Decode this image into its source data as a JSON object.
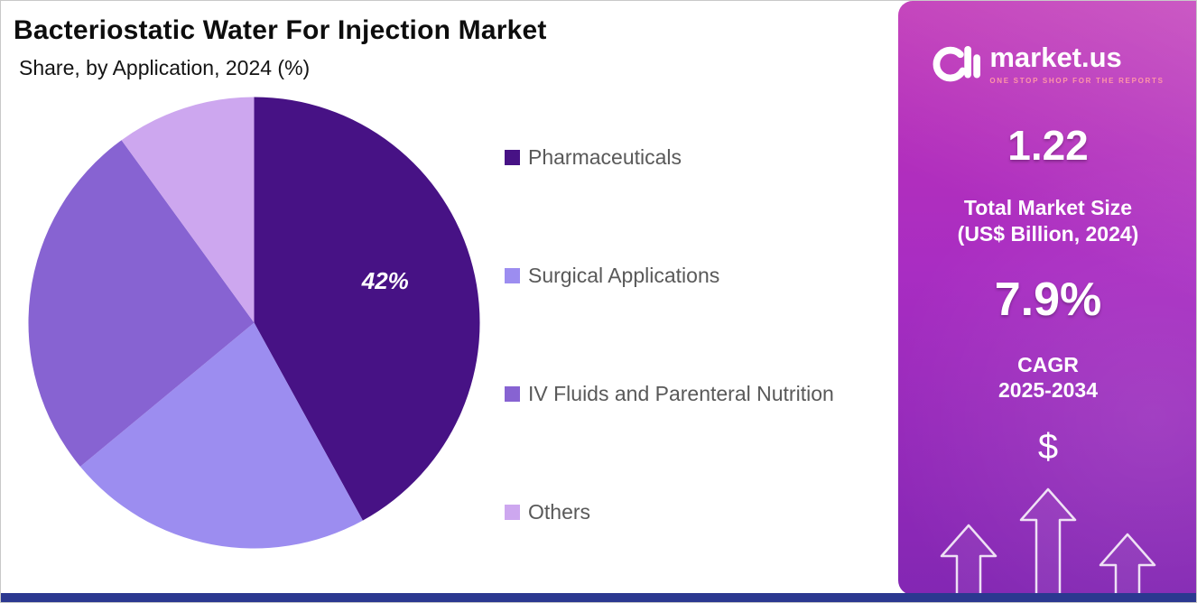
{
  "header": {
    "title": "Bacteriostatic Water For Injection Market",
    "subtitle": "Share, by Application, 2024 (%)"
  },
  "chart_data": {
    "type": "pie",
    "title": "Bacteriostatic Water For Injection Market",
    "subtitle": "Share, by Application, 2024 (%)",
    "unit": "%",
    "start_angle_deg": 0,
    "direction": "clockwise",
    "legend_position": "right",
    "slices": [
      {
        "label": "Pharmaceuticals",
        "value": 42,
        "value_label": "42%",
        "show_value_label": true,
        "color": "#471285"
      },
      {
        "label": "Surgical Applications",
        "value": 22,
        "show_value_label": false,
        "color": "#9C8DF0"
      },
      {
        "label": "IV Fluids and Parenteral Nutrition",
        "value": 26,
        "show_value_label": false,
        "color": "#8763D2"
      },
      {
        "label": "Others",
        "value": 10,
        "show_value_label": false,
        "color": "#CDA7EF"
      }
    ]
  },
  "sidebar": {
    "logo_text": "market.us",
    "logo_tagline": "ONE STOP SHOP FOR THE REPORTS",
    "market_size_value": "1.22",
    "market_size_label_line1": "Total Market Size",
    "market_size_label_line2": "(US$ Billion, 2024)",
    "cagr_value": "7.9%",
    "cagr_label_line1": "CAGR",
    "cagr_label_line2": "2025-2034",
    "currency_symbol": "$"
  },
  "colors": {
    "sidebar_gradient_top": "#BE30B5",
    "sidebar_gradient_bottom": "#8327B3",
    "bottom_bar": "#2B3890",
    "legend_text": "#595959",
    "slice_value_label": "#FFFFFF"
  }
}
